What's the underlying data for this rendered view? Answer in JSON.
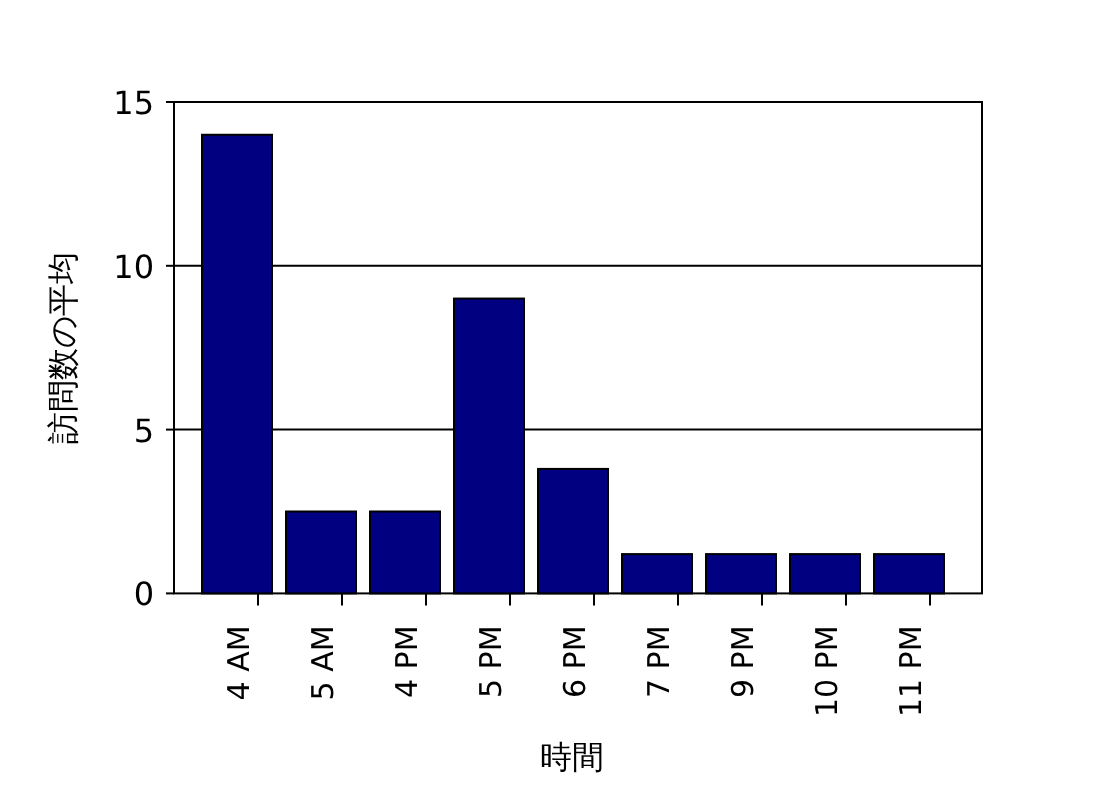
{
  "chart_data": {
    "type": "bar",
    "xlabel": "時間",
    "ylabel": "訪問数の平均",
    "categories": [
      "4 AM",
      "5 AM",
      "4 PM",
      "5 PM",
      "6 PM",
      "7 PM",
      "9 PM",
      "10 PM",
      "11 PM"
    ],
    "values": [
      14,
      2.5,
      2.5,
      9,
      3.8,
      1.2,
      1.2,
      1.2,
      1.2
    ],
    "color": "#000080",
    "ylim": [
      0,
      15
    ],
    "yticks": [
      0,
      5,
      10,
      15
    ],
    "grid": "y"
  }
}
